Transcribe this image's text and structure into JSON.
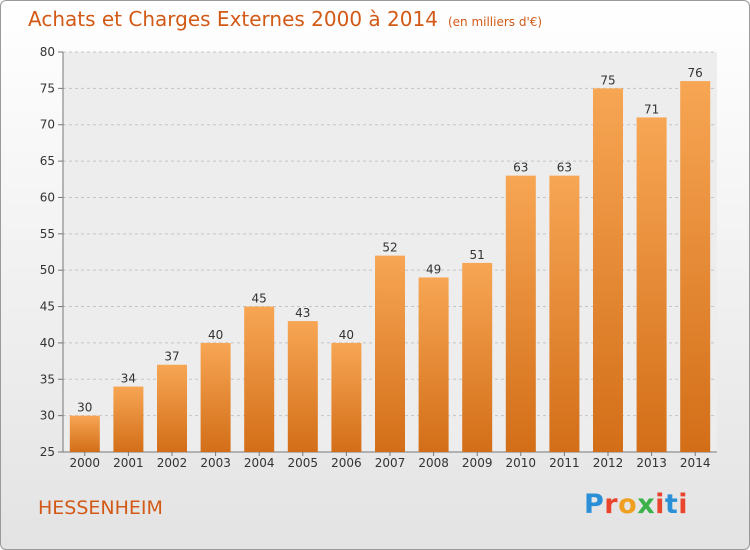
{
  "header": {
    "title": "Achats et Charges Externes 2000 à 2014",
    "subtitle": "(en milliers d'€)"
  },
  "footer": {
    "city": "HESSENHEIM",
    "logo": "Proxiti"
  },
  "colors": {
    "accent": "#d25a16",
    "bar_top": "#f7a654",
    "bar_bottom": "#d36e18",
    "logo_letters": [
      "#2a8fd6",
      "#e8452c",
      "#f0a020",
      "#3bb34a",
      "#e8452c",
      "#2a8fd6",
      "#e8452c"
    ]
  },
  "chart_data": {
    "type": "bar",
    "title": "Achats et Charges Externes 2000 à 2014",
    "subtitle": "(en milliers d'€)",
    "categories": [
      "2000",
      "2001",
      "2002",
      "2003",
      "2004",
      "2005",
      "2006",
      "2007",
      "2008",
      "2009",
      "2010",
      "2011",
      "2012",
      "2013",
      "2014"
    ],
    "values": [
      30,
      34,
      37,
      40,
      45,
      43,
      40,
      52,
      49,
      51,
      63,
      63,
      75,
      71,
      76
    ],
    "ylim": [
      25,
      80
    ],
    "yticks": [
      25,
      30,
      35,
      40,
      45,
      50,
      55,
      60,
      65,
      70,
      75,
      80
    ],
    "xlabel": "",
    "ylabel": "",
    "grid": true,
    "legend": "none"
  }
}
